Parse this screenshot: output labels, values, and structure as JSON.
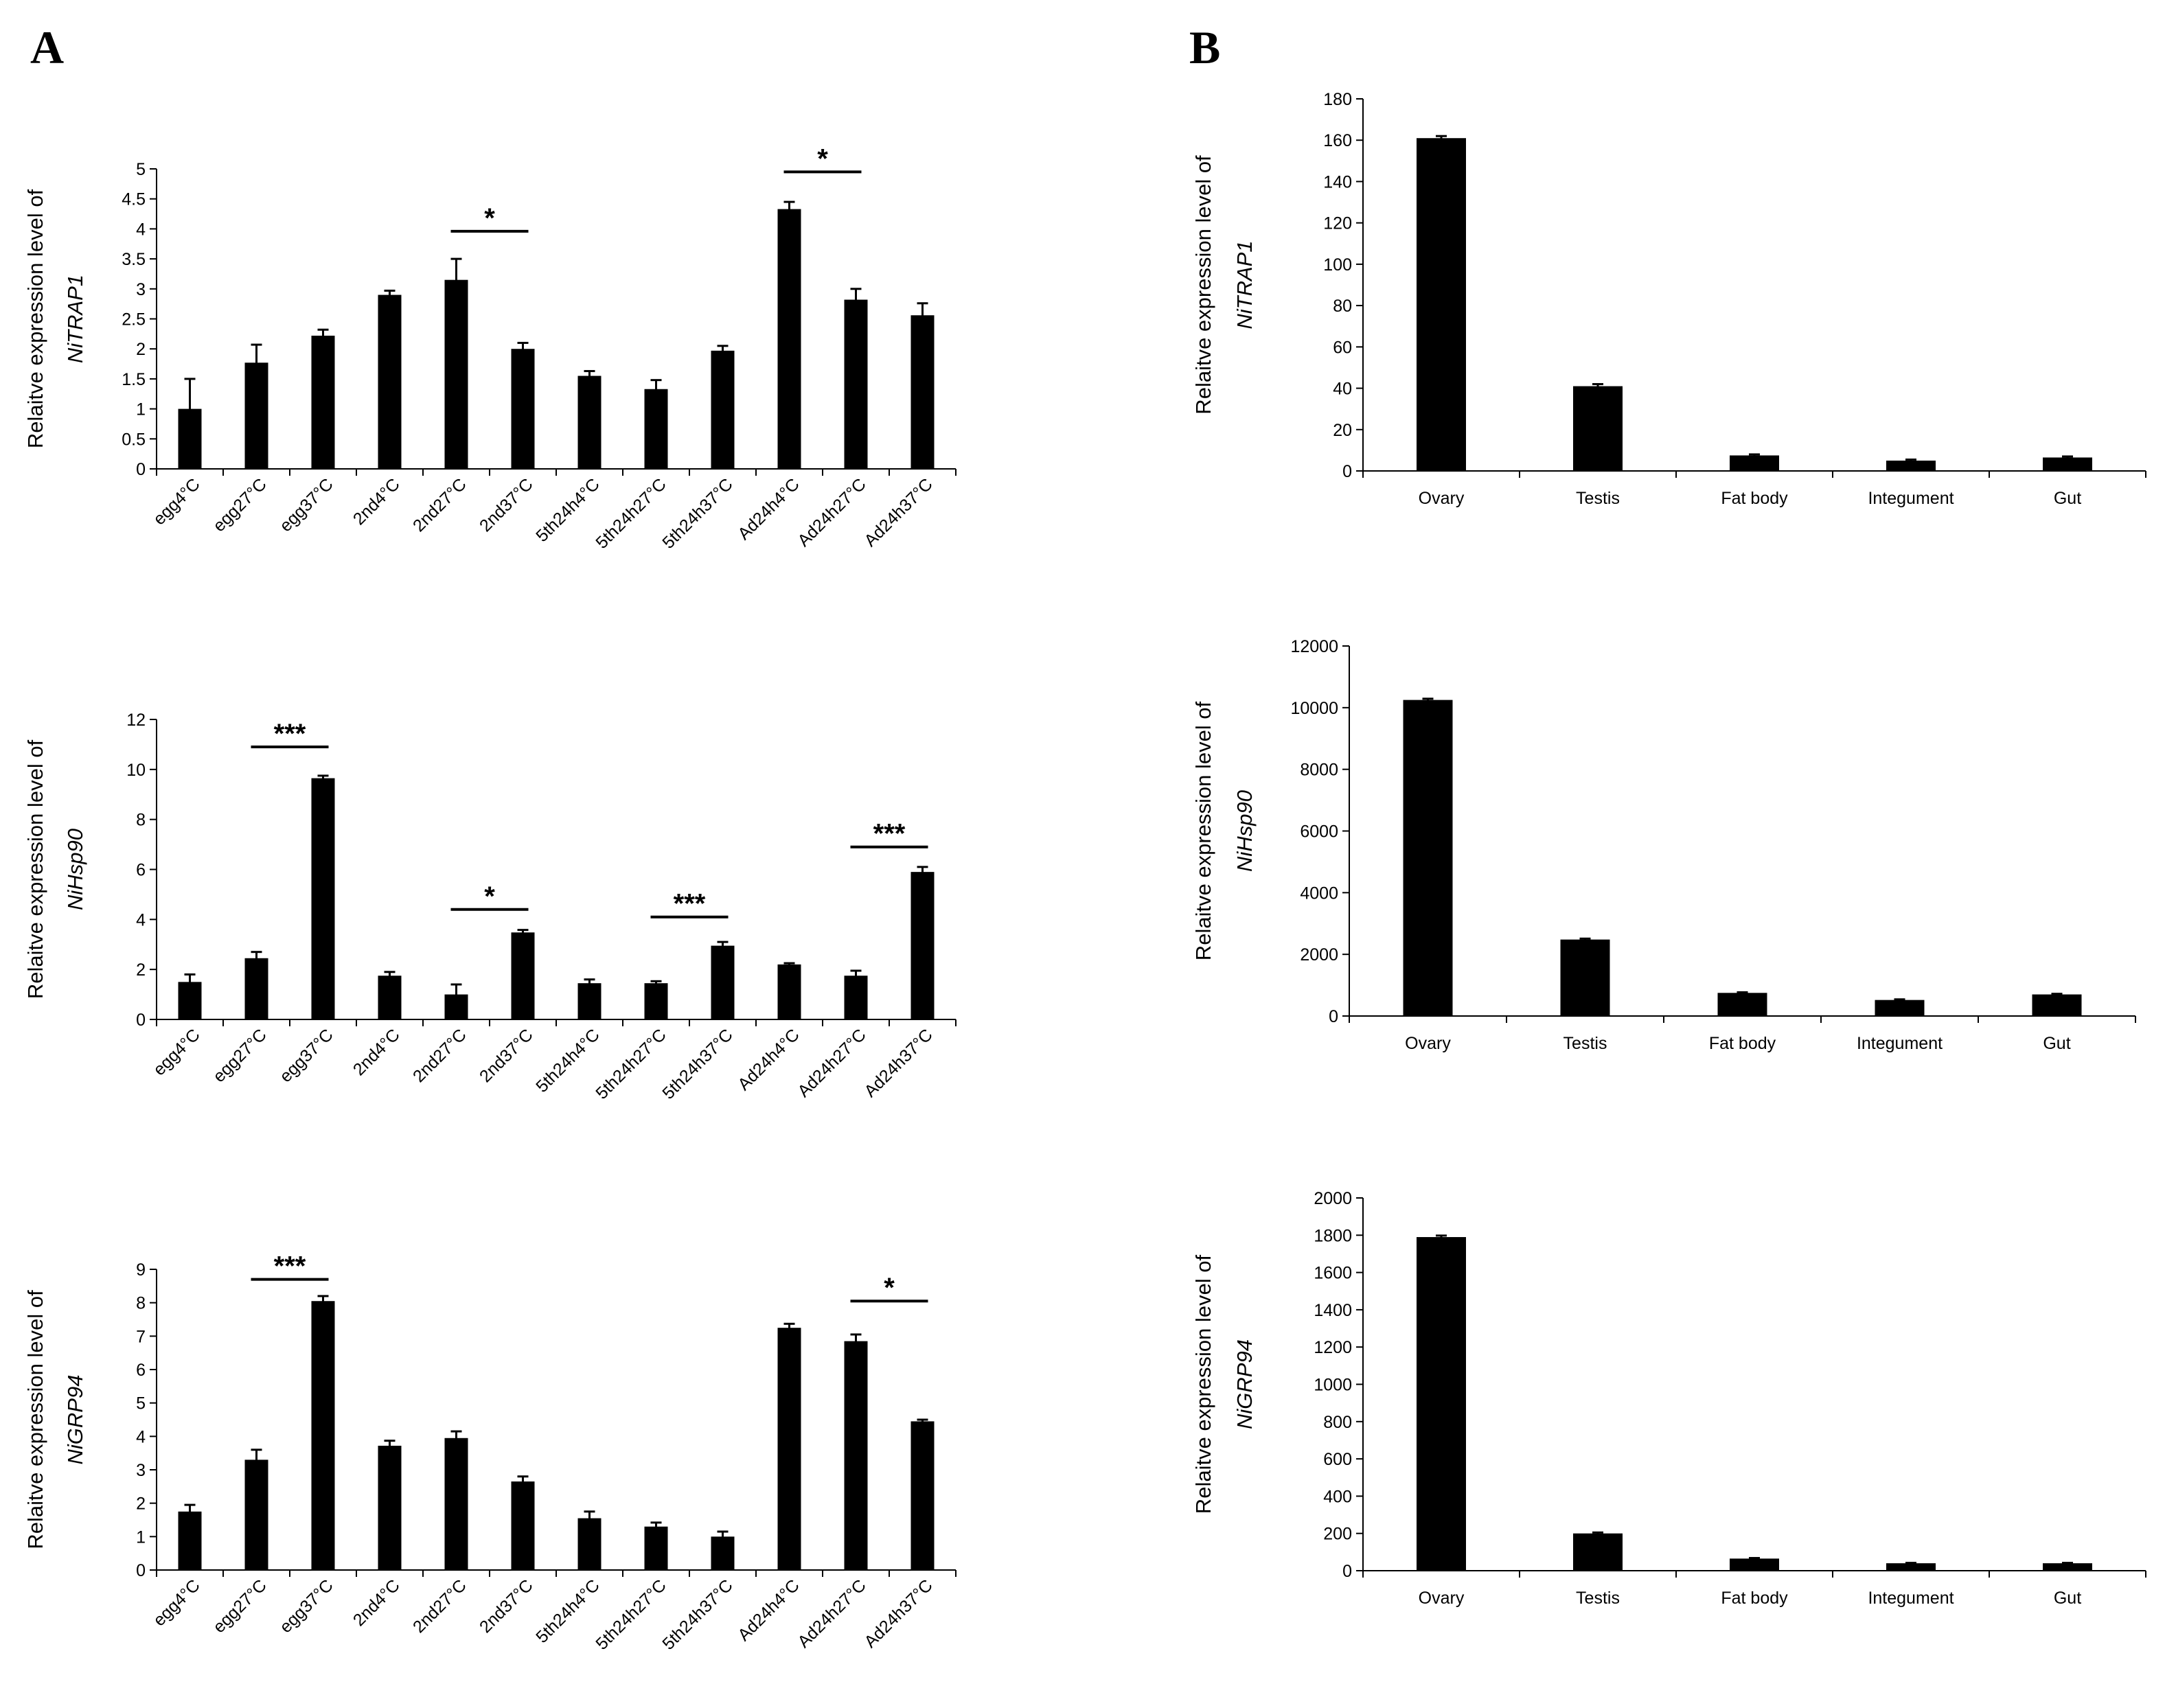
{
  "panels": {
    "a": "A",
    "b": "B"
  },
  "chart_data": [
    {
      "id": "a1",
      "panel": "A",
      "type": "bar",
      "ylabel": "Relaitve expression level of",
      "gene": "NiTRAP1",
      "categories": [
        "egg4°C",
        "egg27°C",
        "egg37°C",
        "2nd4°C",
        "2nd27°C",
        "2nd37°C",
        "5th24h4°C",
        "5th24h27°C",
        "5th24h37°C",
        "Ad24h4°C",
        "Ad24h27°C",
        "Ad24h37°C"
      ],
      "values": [
        1.0,
        1.77,
        2.22,
        2.9,
        3.15,
        2.0,
        1.55,
        1.33,
        1.97,
        4.33,
        2.82,
        2.56
      ],
      "errors": [
        0.5,
        0.3,
        0.1,
        0.07,
        0.35,
        0.1,
        0.08,
        0.15,
        0.08,
        0.12,
        0.18,
        0.2
      ],
      "ylim": [
        0,
        5
      ],
      "yticks": [
        "0",
        "0.5",
        "1",
        "1.5",
        "2",
        "2.5",
        "3",
        "3.5",
        "4",
        "4.5",
        "5"
      ],
      "significance": [
        {
          "from": 4,
          "to": 5,
          "y": 3.96,
          "label": "*"
        },
        {
          "from": 9,
          "to": 10,
          "y": 4.95,
          "label": "*"
        }
      ]
    },
    {
      "id": "a2",
      "panel": "A",
      "type": "bar",
      "ylabel": "Relaitve expression level of",
      "gene": "NiHsp90",
      "categories": [
        "egg4°C",
        "egg27°C",
        "egg37°C",
        "2nd4°C",
        "2nd27°C",
        "2nd37°C",
        "5th24h4°C",
        "5th24h27°C",
        "5th24h37°C",
        "Ad24h4°C",
        "Ad24h27°C",
        "Ad24h37°C"
      ],
      "values": [
        1.5,
        2.45,
        9.65,
        1.75,
        1.0,
        3.48,
        1.45,
        1.45,
        2.95,
        2.2,
        1.75,
        5.9
      ],
      "errors": [
        0.3,
        0.25,
        0.1,
        0.15,
        0.4,
        0.1,
        0.15,
        0.08,
        0.15,
        0.05,
        0.2,
        0.2
      ],
      "ylim": [
        0,
        12
      ],
      "yticks": [
        "0",
        "2",
        "4",
        "6",
        "8",
        "10",
        "12"
      ],
      "significance": [
        {
          "from": 1,
          "to": 2,
          "y": 10.9,
          "label": "***"
        },
        {
          "from": 4,
          "to": 5,
          "y": 4.4,
          "label": "*"
        },
        {
          "from": 7,
          "to": 8,
          "y": 4.1,
          "label": "***"
        },
        {
          "from": 10,
          "to": 11,
          "y": 6.9,
          "label": "***"
        }
      ]
    },
    {
      "id": "a3",
      "panel": "A",
      "type": "bar",
      "ylabel": "Relaitve expression level of",
      "gene": "NiGRP94",
      "categories": [
        "egg4°C",
        "egg27°C",
        "egg37°C",
        "2nd4°C",
        "2nd27°C",
        "2nd37°C",
        "5th24h4°C",
        "5th24h27°C",
        "5th24h37°C",
        "Ad24h4°C",
        "Ad24h27°C",
        "Ad24h37°C"
      ],
      "values": [
        1.75,
        3.3,
        8.05,
        3.72,
        3.95,
        2.65,
        1.55,
        1.3,
        1.0,
        7.25,
        6.85,
        4.45
      ],
      "errors": [
        0.2,
        0.3,
        0.15,
        0.15,
        0.2,
        0.15,
        0.2,
        0.12,
        0.15,
        0.12,
        0.2,
        0.05
      ],
      "ylim": [
        0,
        9
      ],
      "yticks": [
        "0",
        "1",
        "2",
        "3",
        "4",
        "5",
        "6",
        "7",
        "8",
        "9"
      ],
      "significance": [
        {
          "from": 1,
          "to": 2,
          "y": 8.7,
          "label": "***"
        },
        {
          "from": 10,
          "to": 11,
          "y": 8.05,
          "label": "*"
        }
      ]
    },
    {
      "id": "b1",
      "panel": "B",
      "type": "bar",
      "ylabel": "Relaitve expression level of",
      "gene": "NiTRAP1",
      "categories": [
        "Ovary",
        "Testis",
        "Fat body",
        "Integument",
        "Gut"
      ],
      "values": [
        161,
        41,
        7.5,
        5,
        6.5
      ],
      "errors": [
        1,
        1,
        0.5,
        0.5,
        0.5
      ],
      "ylim": [
        0,
        180
      ],
      "yticks": [
        "0",
        "20",
        "40",
        "60",
        "80",
        "100",
        "120",
        "140",
        "160",
        "180"
      ],
      "significance": []
    },
    {
      "id": "b2",
      "panel": "B",
      "type": "bar",
      "ylabel": "Relaitve expression level of",
      "gene": "NiHsp90",
      "categories": [
        "Ovary",
        "Testis",
        "Fat body",
        "Integument",
        "Gut"
      ],
      "values": [
        10250,
        2480,
        750,
        520,
        700
      ],
      "errors": [
        40,
        30,
        20,
        20,
        20
      ],
      "ylim": [
        0,
        12000
      ],
      "yticks": [
        "0",
        "2000",
        "4000",
        "6000",
        "8000",
        "10000",
        "12000"
      ],
      "significance": []
    },
    {
      "id": "b3",
      "panel": "B",
      "type": "bar",
      "ylabel": "Relaitve expression level of",
      "gene": "NiGRP94",
      "categories": [
        "Ovary",
        "Testis",
        "Fat body",
        "Integument",
        "Gut"
      ],
      "values": [
        1790,
        200,
        65,
        40,
        40
      ],
      "errors": [
        8,
        5,
        3,
        2,
        2
      ],
      "ylim": [
        0,
        2000
      ],
      "yticks": [
        "0",
        "200",
        "400",
        "600",
        "800",
        "1000",
        "1200",
        "1400",
        "1600",
        "1800",
        "2000"
      ],
      "significance": []
    }
  ]
}
